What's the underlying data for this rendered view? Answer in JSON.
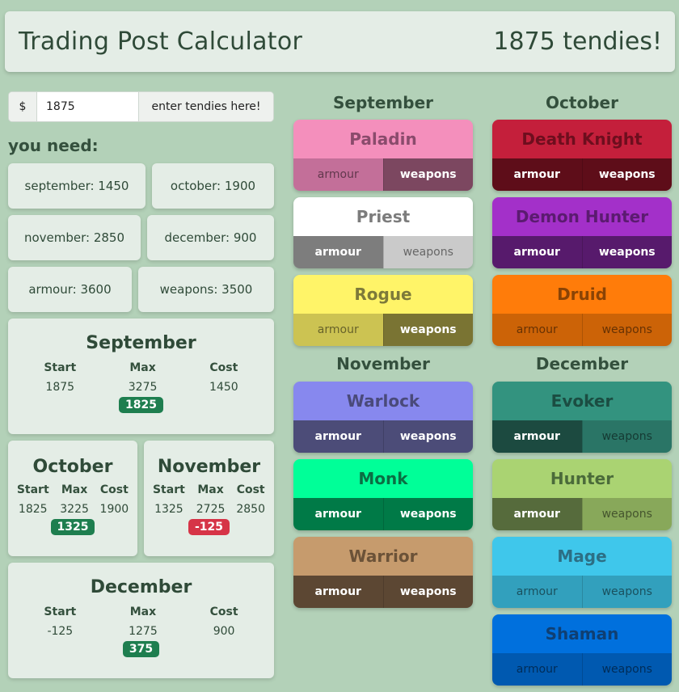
{
  "header": {
    "title": "Trading Post Calculator",
    "total": "1875 tendies!"
  },
  "input": {
    "prefix": "$",
    "value": "1875",
    "suffix": "enter tendies here!"
  },
  "need": {
    "label": "you need:",
    "items": [
      "september: 1450",
      "october: 1900",
      "november: 2850",
      "december: 900",
      "armour: 3600",
      "weapons: 3500"
    ]
  },
  "months": {
    "labels": {
      "start": "Start",
      "max": "Max",
      "cost": "Cost"
    },
    "september": {
      "title": "September",
      "start": "1875",
      "max": "3275",
      "cost": "1450",
      "remaining": "1825"
    },
    "october": {
      "title": "October",
      "start": "1825",
      "max": "3225",
      "cost": "1900",
      "remaining": "1325"
    },
    "november": {
      "title": "November",
      "start": "1325",
      "max": "2725",
      "cost": "2850",
      "remaining": "-125"
    },
    "december": {
      "title": "December",
      "start": "-125",
      "max": "1275",
      "cost": "900",
      "remaining": "375"
    }
  },
  "columns": {
    "september": "September",
    "october": "October",
    "november": "November",
    "december": "December"
  },
  "buttons": {
    "armour": "armour",
    "weapons": "weapons"
  },
  "classes": {
    "paladin": {
      "name": "Paladin",
      "head_bg": "#f48fbc",
      "head_fg": "#8a4b6c",
      "armour_bg": "#c36f99",
      "weapons_bg": "#7c4760",
      "armour_selected": false,
      "weapons_selected": true
    },
    "death_knight": {
      "name": "Death Knight",
      "head_bg": "#c41f3b",
      "head_fg": "#6e0e1e",
      "armour_bg": "#5e0d19",
      "weapons_bg": "#5e0d19",
      "armour_selected": true,
      "weapons_selected": true
    },
    "priest": {
      "name": "Priest",
      "head_bg": "#ffffff",
      "head_fg": "#7c7c7c",
      "armour_bg": "#7d7d7d",
      "weapons_bg": "#cacaca",
      "armour_selected": true,
      "weapons_selected": false
    },
    "demon_hunter": {
      "name": "Demon Hunter",
      "head_bg": "#a330c9",
      "head_fg": "#5b1b70",
      "armour_bg": "#571a6c",
      "weapons_bg": "#571a6c",
      "armour_selected": true,
      "weapons_selected": true
    },
    "rogue": {
      "name": "Rogue",
      "head_bg": "#fff468",
      "head_fg": "#7d7a3a",
      "armour_bg": "#ccc352",
      "weapons_bg": "#7a7433",
      "armour_selected": false,
      "weapons_selected": true
    },
    "druid": {
      "name": "Druid",
      "head_bg": "#ff7c0a",
      "head_fg": "#8a4305",
      "armour_bg": "#cc6307",
      "weapons_bg": "#cc6307",
      "armour_selected": false,
      "weapons_selected": false
    },
    "warlock": {
      "name": "Warlock",
      "head_bg": "#8788ee",
      "head_fg": "#4a4a7a",
      "armour_bg": "#4c4c78",
      "weapons_bg": "#4c4c78",
      "armour_selected": true,
      "weapons_selected": true
    },
    "evoker": {
      "name": "Evoker",
      "head_bg": "#33937f",
      "head_fg": "#1b4d42",
      "armour_bg": "#1c4a40",
      "weapons_bg": "#2a7566",
      "armour_selected": true,
      "weapons_selected": false
    },
    "monk": {
      "name": "Monk",
      "head_bg": "#00ff98",
      "head_fg": "#0b6e43",
      "armour_bg": "#007a47",
      "weapons_bg": "#007a47",
      "armour_selected": true,
      "weapons_selected": true
    },
    "hunter": {
      "name": "Hunter",
      "head_bg": "#aad372",
      "head_fg": "#4b6b3a",
      "armour_bg": "#566b3c",
      "weapons_bg": "#88a85a",
      "armour_selected": true,
      "weapons_selected": false
    },
    "warrior": {
      "name": "Warrior",
      "head_bg": "#c69b6d",
      "head_fg": "#6b5238",
      "armour_bg": "#5c4733",
      "weapons_bg": "#5c4733",
      "armour_selected": true,
      "weapons_selected": true
    },
    "mage": {
      "name": "Mage",
      "head_bg": "#3fc7eb",
      "head_fg": "#2c6f85",
      "armour_bg": "#32a0bd",
      "weapons_bg": "#32a0bd",
      "armour_selected": false,
      "weapons_selected": false
    },
    "shaman": {
      "name": "Shaman",
      "head_bg": "#0070dd",
      "head_fg": "#0f3f73",
      "armour_bg": "#0059b0",
      "weapons_bg": "#0059b0",
      "armour_selected": false,
      "weapons_selected": false
    }
  }
}
